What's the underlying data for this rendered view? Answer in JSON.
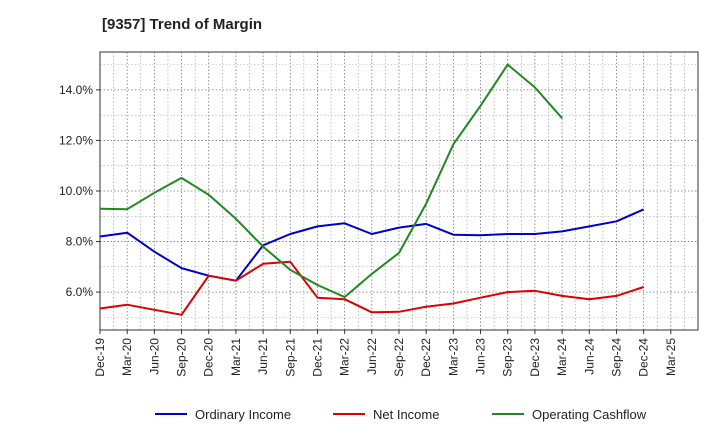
{
  "chart_data": {
    "type": "line",
    "title": "[9357]  Trend of Margin",
    "xlabel": "",
    "ylabel": "",
    "categories": [
      "Dec-19",
      "Mar-20",
      "Jun-20",
      "Sep-20",
      "Dec-20",
      "Mar-21",
      "Jun-21",
      "Sep-21",
      "Dec-21",
      "Mar-22",
      "Jun-22",
      "Sep-22",
      "Dec-22",
      "Mar-23",
      "Jun-23",
      "Sep-23",
      "Dec-23",
      "Mar-24",
      "Jun-24",
      "Sep-24",
      "Dec-24",
      "Mar-25"
    ],
    "ylim": [
      4.5,
      15.5
    ],
    "yticks": [
      6.0,
      8.0,
      10.0,
      12.0,
      14.0
    ],
    "ytick_labels": [
      "6.0%",
      "8.0%",
      "10.0%",
      "12.0%",
      "14.0%"
    ],
    "grid": true,
    "legend_position": "bottom",
    "series": [
      {
        "name": "Ordinary Income",
        "color": "#0000cc",
        "values": [
          8.2,
          8.35,
          7.6,
          6.95,
          6.65,
          6.45,
          7.85,
          8.3,
          8.6,
          8.72,
          8.3,
          8.55,
          8.7,
          8.27,
          8.25,
          8.3,
          8.3,
          8.4,
          8.6,
          8.8,
          9.27,
          null
        ]
      },
      {
        "name": "Net Income",
        "color": "#dd0000",
        "values": [
          5.35,
          5.5,
          5.3,
          5.1,
          6.65,
          6.45,
          7.12,
          7.2,
          5.78,
          5.72,
          5.2,
          5.22,
          5.42,
          5.55,
          5.78,
          6.0,
          6.05,
          5.85,
          5.72,
          5.85,
          6.2,
          null
        ]
      },
      {
        "name": "Operating Cashflow",
        "color": "#228822",
        "values": [
          9.3,
          9.28,
          9.93,
          10.52,
          9.85,
          8.9,
          7.8,
          6.88,
          6.28,
          5.8,
          6.72,
          7.55,
          9.5,
          11.85,
          13.37,
          15.0,
          14.1,
          12.88,
          null,
          null,
          null,
          null
        ]
      }
    ]
  }
}
